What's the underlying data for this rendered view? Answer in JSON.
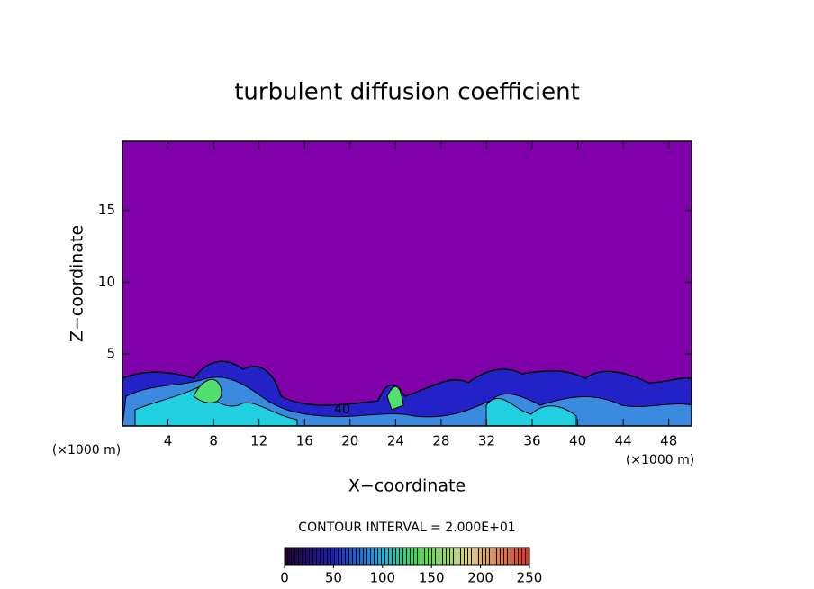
{
  "chart_data": {
    "type": "contour",
    "title": "turbulent diffusion coefficient",
    "x_label": "X−coordinate",
    "y_label": "Z−coordinate",
    "x_unit": "(×1000 m)",
    "y_unit": "(×1000 m)",
    "xlim": [
      0,
      50
    ],
    "ylim": [
      0,
      19.8
    ],
    "xticks": [
      4,
      8,
      12,
      16,
      20,
      24,
      28,
      32,
      36,
      40,
      44,
      48
    ],
    "yticks": [
      5,
      10,
      15
    ],
    "annotations": [
      "40"
    ],
    "contour_interval": "CONTOUR INTERVAL = 2.000E+01",
    "colorbar": {
      "lim": [
        0,
        250
      ],
      "ticks": [
        0,
        50,
        100,
        150,
        200,
        250
      ]
    },
    "background": "#8000aa"
  }
}
